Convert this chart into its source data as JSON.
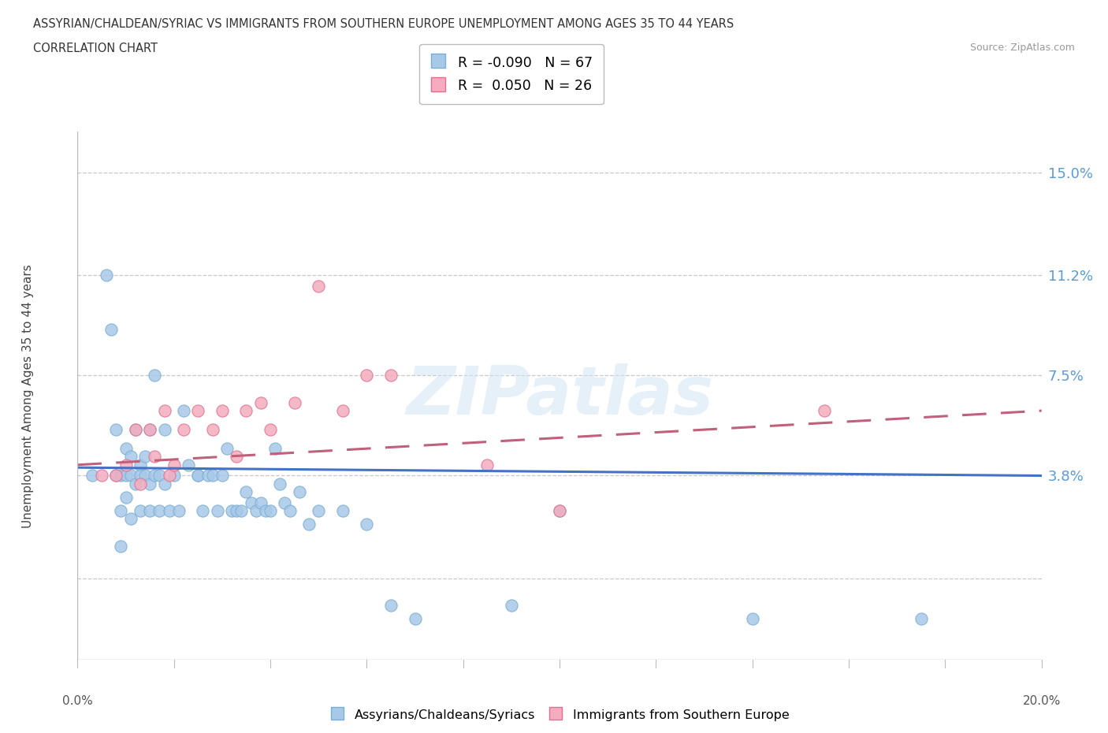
{
  "title_line1": "ASSYRIAN/CHALDEAN/SYRIAC VS IMMIGRANTS FROM SOUTHERN EUROPE UNEMPLOYMENT AMONG AGES 35 TO 44 YEARS",
  "title_line2": "CORRELATION CHART",
  "source_text": "Source: ZipAtlas.com",
  "ylabel": "Unemployment Among Ages 35 to 44 years",
  "ytick_positions": [
    0.0,
    0.038,
    0.075,
    0.112,
    0.15
  ],
  "ytick_labels": [
    "",
    "3.8%",
    "7.5%",
    "11.2%",
    "15.0%"
  ],
  "xlim": [
    0.0,
    0.2
  ],
  "ylim": [
    -0.03,
    0.165
  ],
  "series1_name": "Assyrians/Chaldeans/Syriacs",
  "series1_R": -0.09,
  "series1_N": 67,
  "series1_color": "#A8C8E8",
  "series1_edge_color": "#7AAED4",
  "series1_line_color": "#4472C4",
  "series2_name": "Immigrants from Southern Europe",
  "series2_R": 0.05,
  "series2_N": 26,
  "series2_color": "#F4ACBE",
  "series2_edge_color": "#E07090",
  "series2_line_color": "#C0607A",
  "watermark": "ZIPatlas",
  "background_color": "#ffffff",
  "grid_color": "#C8C8C8",
  "series1_x": [
    0.003,
    0.006,
    0.007,
    0.008,
    0.008,
    0.009,
    0.009,
    0.009,
    0.01,
    0.01,
    0.01,
    0.011,
    0.011,
    0.011,
    0.012,
    0.012,
    0.013,
    0.013,
    0.013,
    0.014,
    0.014,
    0.015,
    0.015,
    0.015,
    0.016,
    0.016,
    0.017,
    0.017,
    0.018,
    0.018,
    0.019,
    0.02,
    0.021,
    0.022,
    0.023,
    0.025,
    0.025,
    0.026,
    0.027,
    0.028,
    0.029,
    0.03,
    0.031,
    0.032,
    0.033,
    0.034,
    0.035,
    0.036,
    0.037,
    0.038,
    0.039,
    0.04,
    0.041,
    0.042,
    0.043,
    0.044,
    0.046,
    0.048,
    0.05,
    0.055,
    0.06,
    0.065,
    0.07,
    0.09,
    0.1,
    0.14,
    0.175
  ],
  "series1_y": [
    0.038,
    0.112,
    0.092,
    0.038,
    0.055,
    0.038,
    0.025,
    0.012,
    0.038,
    0.03,
    0.048,
    0.045,
    0.038,
    0.022,
    0.055,
    0.035,
    0.042,
    0.038,
    0.025,
    0.045,
    0.038,
    0.055,
    0.035,
    0.025,
    0.075,
    0.038,
    0.038,
    0.025,
    0.055,
    0.035,
    0.025,
    0.038,
    0.025,
    0.062,
    0.042,
    0.038,
    0.038,
    0.025,
    0.038,
    0.038,
    0.025,
    0.038,
    0.048,
    0.025,
    0.025,
    0.025,
    0.032,
    0.028,
    0.025,
    0.028,
    0.025,
    0.025,
    0.048,
    0.035,
    0.028,
    0.025,
    0.032,
    0.02,
    0.025,
    0.025,
    0.02,
    -0.01,
    -0.015,
    -0.01,
    0.025,
    -0.015,
    -0.015
  ],
  "series2_x": [
    0.005,
    0.008,
    0.01,
    0.012,
    0.013,
    0.015,
    0.016,
    0.018,
    0.019,
    0.02,
    0.022,
    0.025,
    0.028,
    0.03,
    0.033,
    0.035,
    0.038,
    0.04,
    0.045,
    0.05,
    0.055,
    0.06,
    0.065,
    0.085,
    0.1,
    0.155
  ],
  "series2_y": [
    0.038,
    0.038,
    0.042,
    0.055,
    0.035,
    0.055,
    0.045,
    0.062,
    0.038,
    0.042,
    0.055,
    0.062,
    0.055,
    0.062,
    0.045,
    0.062,
    0.065,
    0.055,
    0.065,
    0.108,
    0.062,
    0.075,
    0.075,
    0.042,
    0.025,
    0.062
  ],
  "trendline1_x0": 0.0,
  "trendline1_y0": 0.041,
  "trendline1_x1": 0.2,
  "trendline1_y1": 0.038,
  "trendline2_x0": 0.0,
  "trendline2_y0": 0.042,
  "trendline2_x1": 0.2,
  "trendline2_y1": 0.062
}
